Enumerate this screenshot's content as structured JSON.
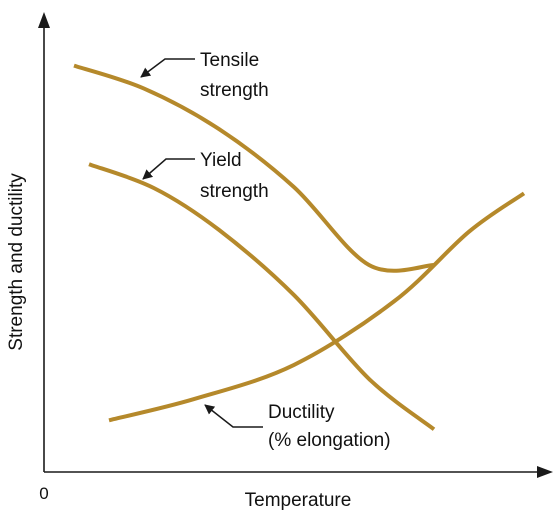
{
  "chart_data": {
    "type": "line",
    "title": "",
    "xlabel": "Temperature",
    "ylabel": "Strength and ductility",
    "origin_label": "0",
    "xlim": [
      0,
      100
    ],
    "ylim": [
      0,
      100
    ],
    "grid": false,
    "legend": "none",
    "colors": {
      "curve": "#b5892b",
      "axis": "#1a1a1a"
    },
    "series": [
      {
        "name": "Tensile strength",
        "label_lines": [
          "Tensile",
          "strength"
        ],
        "x": [
          6,
          20,
          35,
          50,
          65,
          78
        ],
        "y": [
          90.3,
          85.2,
          76.2,
          63.3,
          46.0,
          46.0
        ],
        "xy_note": ""
      },
      {
        "name": "Yield strength",
        "label_lines": [
          "Yield",
          "strength"
        ],
        "x": [
          9,
          22,
          35,
          50,
          65,
          78
        ],
        "y": [
          68.4,
          63.1,
          53.8,
          39.3,
          20.7,
          9.5
        ]
      },
      {
        "name": "Ductility",
        "label_lines": [
          "Ductility",
          "(% elongation)"
        ],
        "x": [
          13,
          30,
          50,
          70,
          85,
          96
        ],
        "y": [
          11.5,
          16.2,
          23.8,
          37.9,
          53.4,
          61.9
        ]
      }
    ]
  }
}
